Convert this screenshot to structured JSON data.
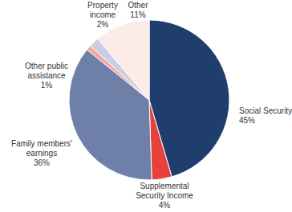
{
  "chart_data": {
    "type": "pie",
    "categories": [
      "Social Security",
      "Supplemental Security Income",
      "Family members' earnings",
      "Other public assistance",
      "Property income",
      "Other"
    ],
    "values": [
      45,
      4,
      36,
      1,
      2,
      11
    ],
    "value_labels": [
      "45%",
      "4%",
      "36%",
      "1%",
      "2%",
      "11%"
    ],
    "data_labels": true,
    "colors": [
      "#1f3d6d",
      "#e8403b",
      "#6e7fa8",
      "#f3a69d",
      "#c9cee2",
      "#fdebe7"
    ]
  }
}
